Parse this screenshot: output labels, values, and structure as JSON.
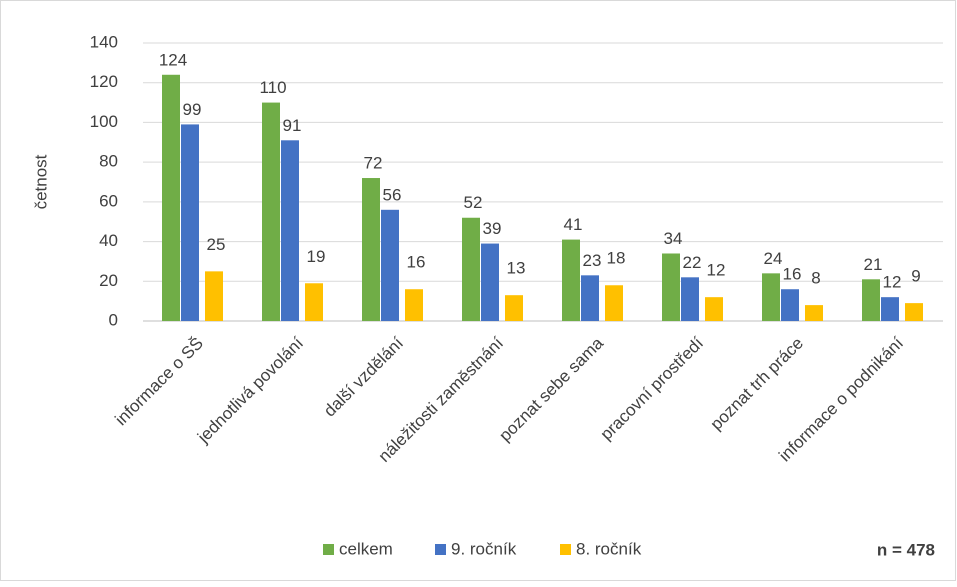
{
  "chart_data": {
    "type": "bar",
    "y_label": "četnost",
    "annotation": "n = 478",
    "categories": [
      "informace o SŠ",
      "jednotlivá povolání",
      "další vzdělání",
      "náležitosti zaměstnání",
      "poznat sebe sama",
      "pracovní prostředí",
      "poznat trh práce",
      "informace o podnikání"
    ],
    "series": [
      {
        "name": "celkem",
        "color": "#70ad47",
        "values": [
          124,
          110,
          72,
          52,
          41,
          34,
          24,
          21
        ]
      },
      {
        "name": "9. ročník",
        "color": "#4472c4",
        "values": [
          99,
          91,
          56,
          39,
          23,
          22,
          16,
          12
        ]
      },
      {
        "name": "8. ročník",
        "color": "#ffc000",
        "values": [
          25,
          19,
          16,
          13,
          18,
          12,
          8,
          9
        ]
      }
    ],
    "ylim": [
      0,
      140
    ],
    "yticks": [
      0,
      20,
      40,
      60,
      80,
      100,
      120,
      140
    ],
    "grid": true,
    "legend": "bottom"
  }
}
